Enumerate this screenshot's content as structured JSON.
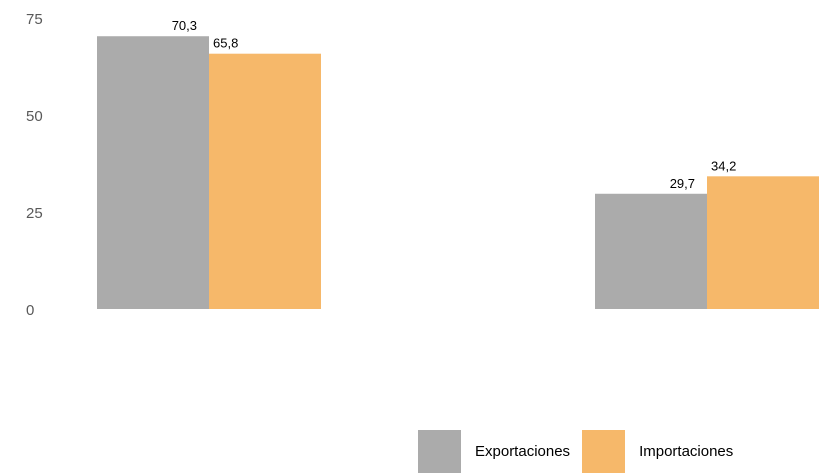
{
  "chart_data": {
    "type": "bar",
    "title": "",
    "xlabel": "",
    "ylabel": "",
    "categories": [
      "",
      ""
    ],
    "series": [
      {
        "name": "Exportaciones",
        "color": "#ababab",
        "values": [
          70.3,
          29.7
        ],
        "labels": [
          "70,3",
          "29,7"
        ]
      },
      {
        "name": "Importaciones",
        "color": "#f6b86a",
        "values": [
          65.8,
          34.2
        ],
        "labels": [
          "65,8",
          "34,2"
        ]
      }
    ],
    "ylim": [
      0,
      75
    ],
    "yticks": [
      0,
      25,
      50,
      75
    ],
    "ytick_labels": [
      "0",
      "25",
      "50",
      "75"
    ],
    "grid": false,
    "legend_position": "bottom-right"
  }
}
